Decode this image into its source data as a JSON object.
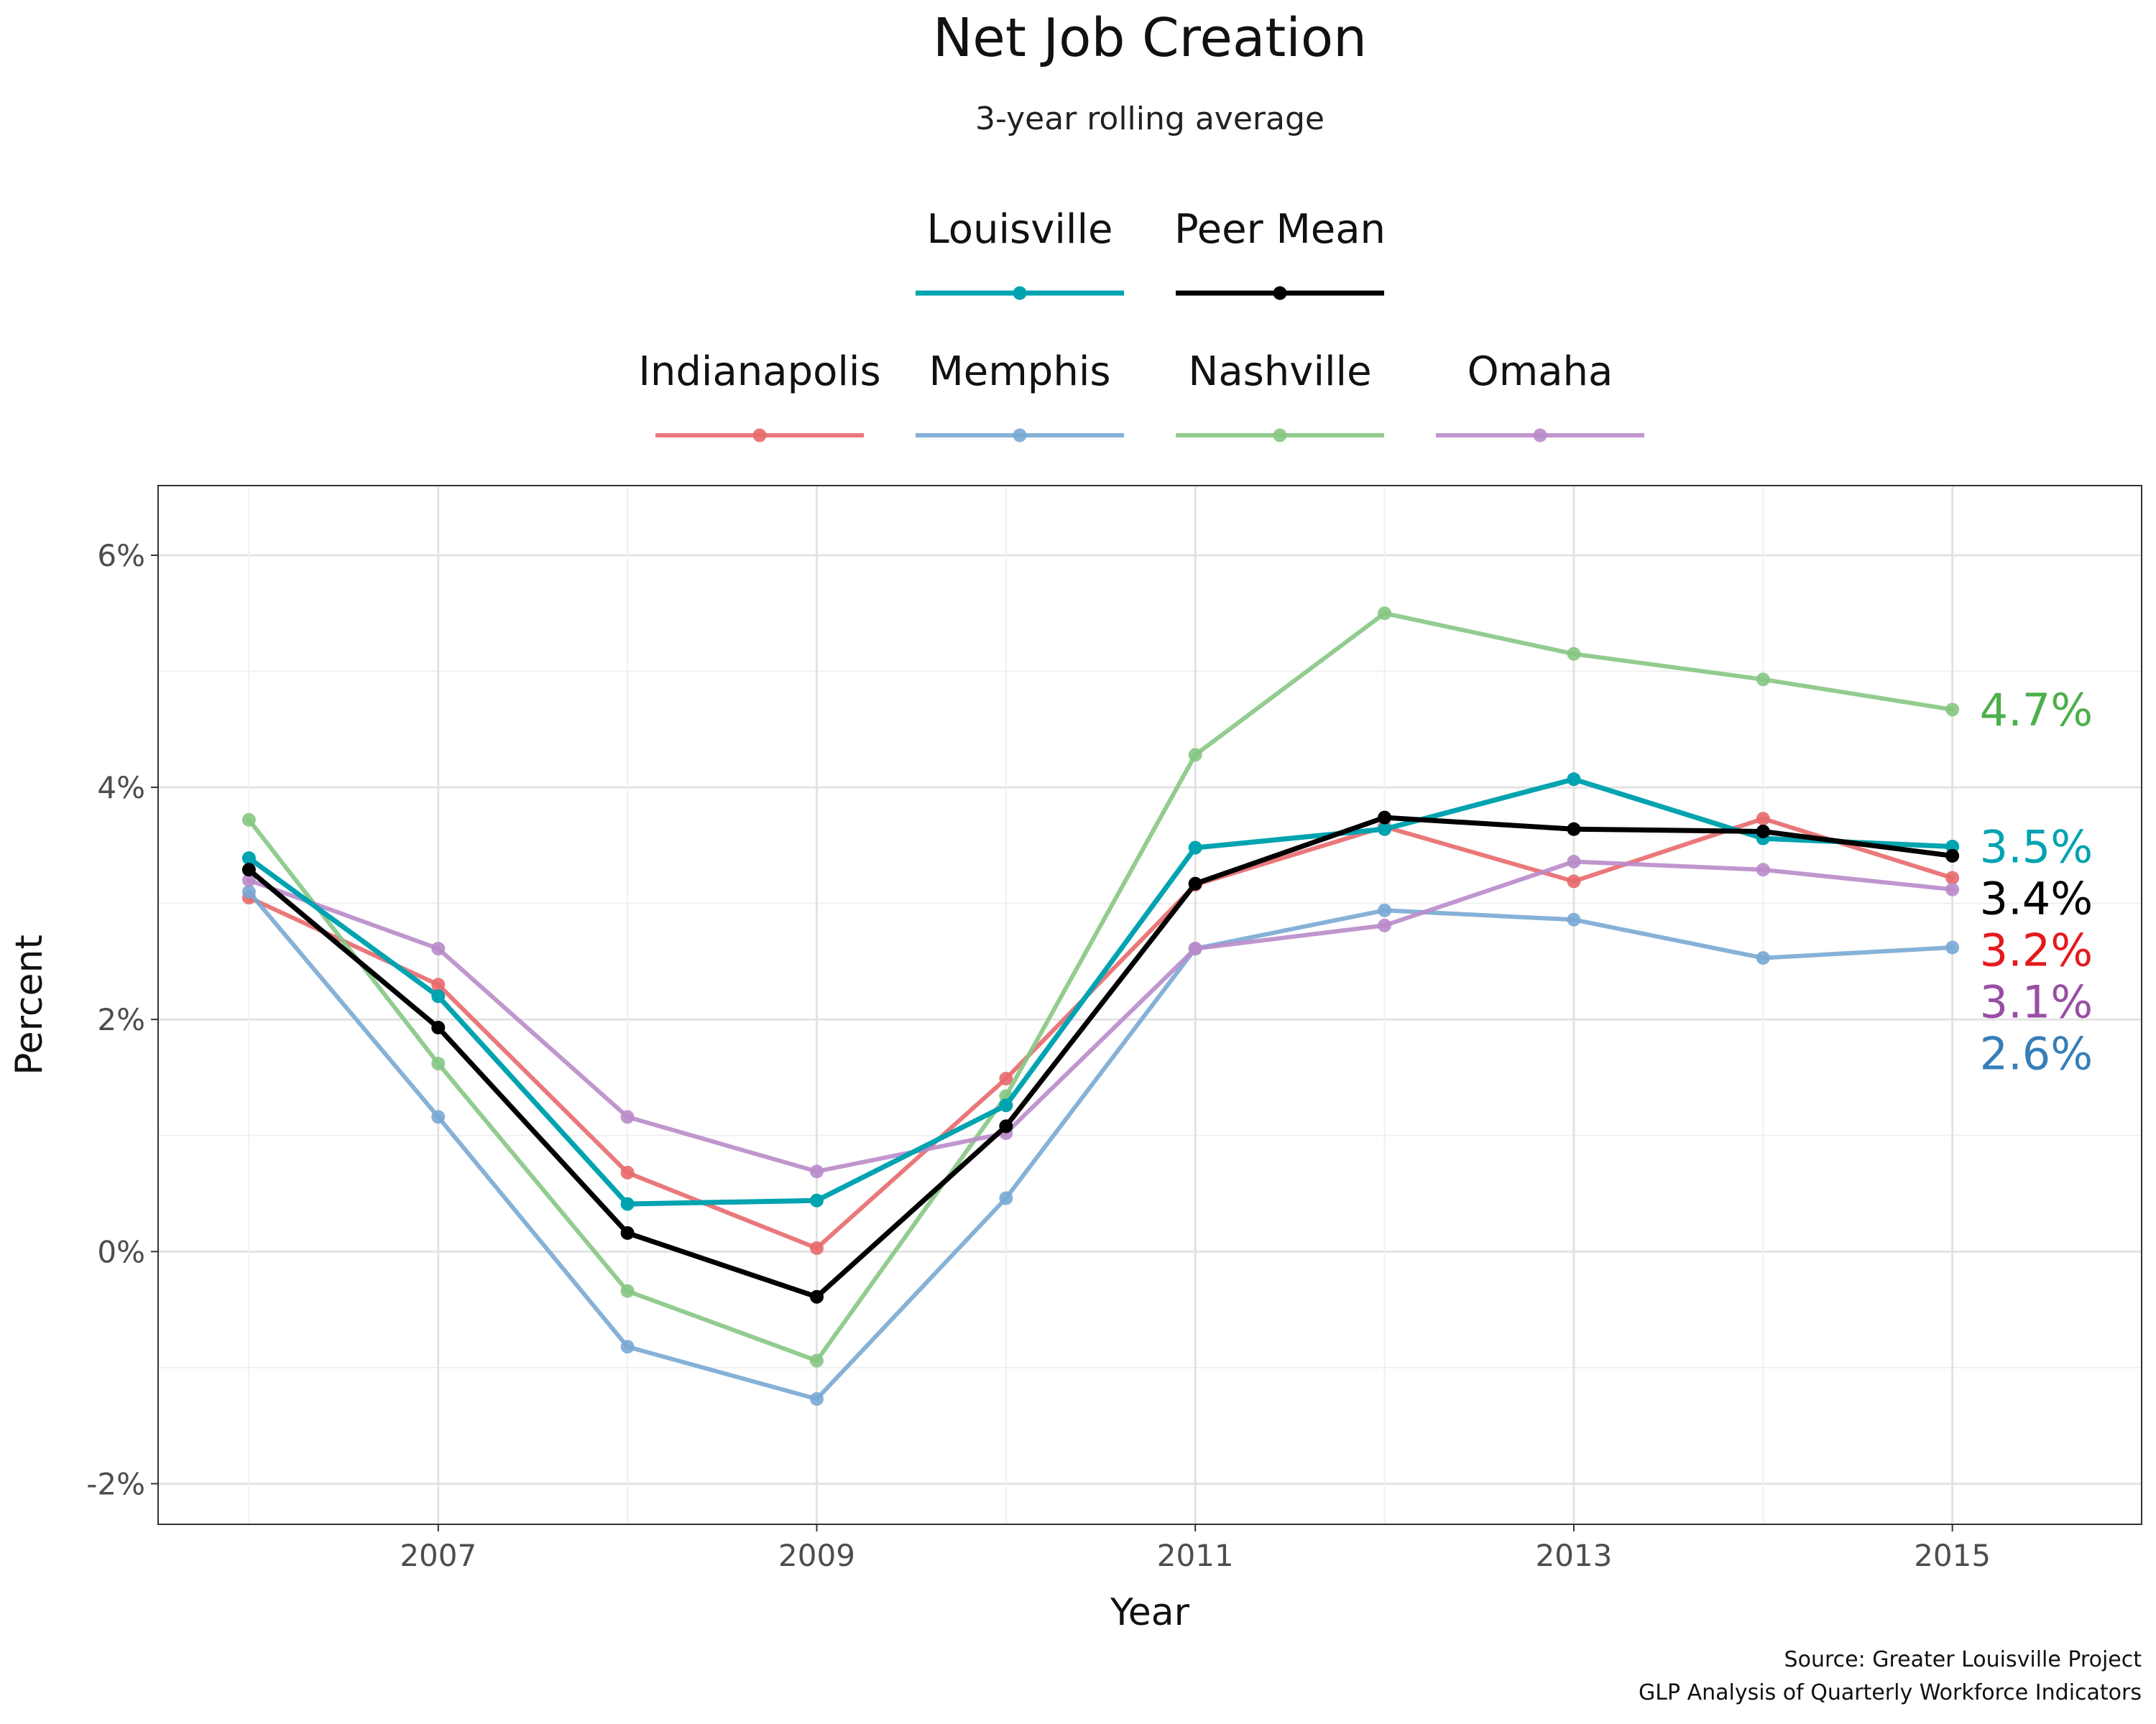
{
  "chart_data": {
    "type": "line",
    "title": "Net Job Creation",
    "subtitle": "3-year rolling average",
    "xlabel": "Year",
    "ylabel": "Percent",
    "x": [
      2006,
      2007,
      2008,
      2009,
      2010,
      2011,
      2012,
      2013,
      2014,
      2015
    ],
    "x_ticks": [
      2007,
      2009,
      2011,
      2013,
      2015
    ],
    "x_tick_labels": [
      "2007",
      "2009",
      "2011",
      "2013",
      "2015"
    ],
    "xlim": [
      2005.52,
      2016.0
    ],
    "y_ticks": [
      -2,
      0,
      2,
      4,
      6
    ],
    "y_tick_labels": [
      "-2%",
      "0%",
      "2%",
      "4%",
      "6%"
    ],
    "ylim": [
      -2.35,
      6.6
    ],
    "grid": true,
    "legend_position": "top",
    "series": [
      {
        "name": "Indianapolis",
        "color": "#e8696b",
        "width": 6,
        "opacity": 0.9,
        "values": [
          3.05,
          2.3,
          0.68,
          0.03,
          1.49,
          3.16,
          3.66,
          3.19,
          3.73,
          3.22
        ],
        "end_label": "3.2%",
        "end_color": "#e31a1c"
      },
      {
        "name": "Memphis",
        "color": "#79a8d4",
        "width": 6,
        "opacity": 0.9,
        "values": [
          3.1,
          1.16,
          -0.82,
          -1.27,
          0.46,
          2.61,
          2.94,
          2.86,
          2.53,
          2.62
        ],
        "end_label": "2.6%",
        "end_color": "#377eb8"
      },
      {
        "name": "Nashville",
        "color": "#86c783",
        "width": 6,
        "opacity": 0.9,
        "values": [
          3.72,
          1.62,
          -0.34,
          -0.94,
          1.34,
          4.28,
          5.5,
          5.15,
          4.93,
          4.67
        ],
        "end_label": "4.7%",
        "end_color": "#4daf4a"
      },
      {
        "name": "Omaha",
        "color": "#b98bc9",
        "width": 6,
        "opacity": 0.9,
        "values": [
          3.2,
          2.61,
          1.16,
          0.69,
          1.02,
          2.61,
          2.81,
          3.36,
          3.29,
          3.12
        ],
        "end_label": "3.1%",
        "end_color": "#984ea3"
      },
      {
        "name": "Louisville",
        "color": "#00a3b0",
        "width": 7,
        "opacity": 1,
        "values": [
          3.39,
          2.2,
          0.41,
          0.44,
          1.26,
          3.48,
          3.64,
          4.07,
          3.56,
          3.49
        ],
        "end_label": "3.5%",
        "end_color": "#00a3b0"
      },
      {
        "name": "Peer Mean",
        "color": "#000000",
        "width": 7,
        "opacity": 1,
        "values": [
          3.29,
          1.93,
          0.16,
          -0.39,
          1.08,
          3.17,
          3.74,
          3.64,
          3.62,
          3.41
        ],
        "end_label": "3.4%",
        "end_color": "#000000"
      }
    ],
    "legend_rows": [
      [
        "Louisville",
        "Peer Mean"
      ],
      [
        "Indianapolis",
        "Memphis",
        "Nashville",
        "Omaha"
      ]
    ],
    "caption": [
      "Source: Greater Louisville Project",
      "GLP Analysis of Quarterly Workforce Indicators"
    ]
  }
}
